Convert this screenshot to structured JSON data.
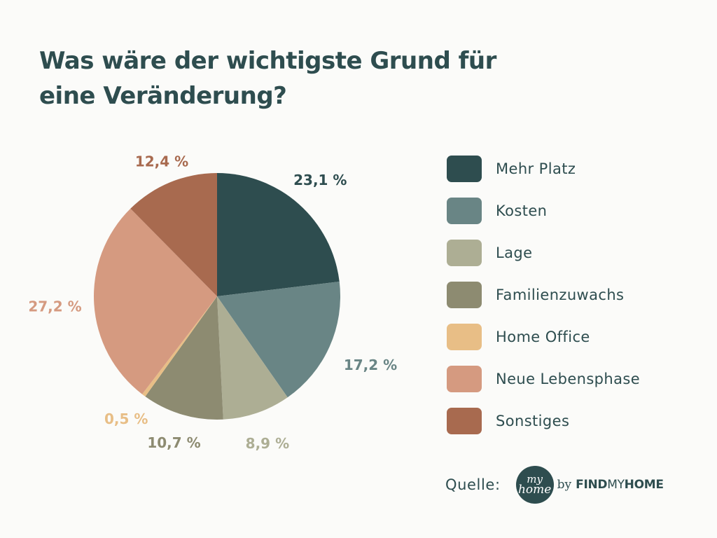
{
  "title": {
    "line1": "Was wäre der wichtigste Grund für",
    "line2": "eine Veränderung?"
  },
  "chart_data": {
    "type": "pie",
    "title": "Was wäre der wichtigste Grund für eine Veränderung?",
    "categories": [
      "Mehr Platz",
      "Kosten",
      "Lage",
      "Familienzuwachs",
      "Home Office",
      "Neue Lebensphase",
      "Sonstiges"
    ],
    "values": [
      23.1,
      17.2,
      8.9,
      10.7,
      0.5,
      27.2,
      12.4
    ],
    "labels": [
      "23,1 %",
      "17,2 %",
      "8,9 %",
      "10,7 %",
      "0,5 %",
      "27,2 %",
      "12,4 %"
    ],
    "colors": [
      "#2e4d4f",
      "#698585",
      "#adae94",
      "#8d8b71",
      "#e8be86",
      "#d59a80",
      "#a86a4f"
    ],
    "start": "12 o'clock",
    "direction": "clockwise",
    "legend": "right"
  },
  "legend": [
    {
      "label": "Mehr Platz",
      "color": "#2e4d4f"
    },
    {
      "label": "Kosten",
      "color": "#698585"
    },
    {
      "label": "Lage",
      "color": "#adae94"
    },
    {
      "label": "Familienzuwachs",
      "color": "#8d8b71"
    },
    {
      "label": "Home Office",
      "color": "#e8be86"
    },
    {
      "label": "Neue Lebensphase",
      "color": "#d59a80"
    },
    {
      "label": "Sonstiges",
      "color": "#a86a4f"
    }
  ],
  "source": {
    "label": "Quelle:",
    "logo_my": "my",
    "logo_home": "home",
    "logo_by": "by",
    "brand_part1": "FIND",
    "brand_part2": "MY",
    "brand_part3": "HOME"
  }
}
